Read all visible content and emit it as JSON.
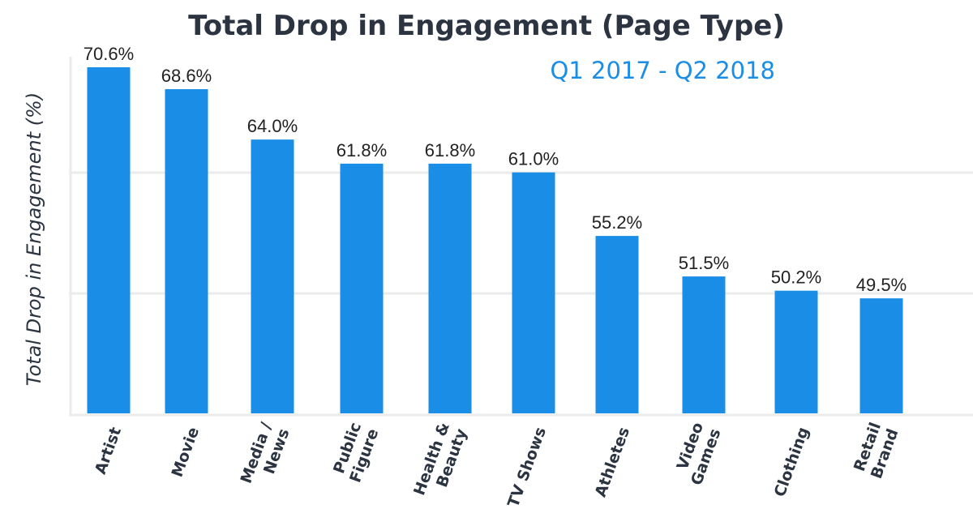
{
  "chart_data": {
    "type": "bar",
    "title": "Total Drop in Engagement (Page Type)",
    "subtitle": "Q1 2017 - Q2 2018",
    "ylabel": "Total Drop in Engagement (%)",
    "xlabel": "",
    "categories": [
      "Artist",
      "Movie",
      "Media / News",
      "Public Figure",
      "Health & Beauty",
      "TV Shows",
      "Athletes",
      "Video Games",
      "Clothing",
      "Retail Brand"
    ],
    "values": [
      70.6,
      68.6,
      64.0,
      61.8,
      61.8,
      61.0,
      55.2,
      51.5,
      50.2,
      49.5
    ],
    "data_labels": [
      "70.6%",
      "68.6%",
      "64.0%",
      "61.8%",
      "61.8%",
      "61.0%",
      "55.2%",
      "51.5%",
      "50.2%",
      "49.5%"
    ],
    "ylim": [
      39,
      71
    ],
    "grid": true,
    "legend": "none",
    "colors": {
      "bar": "#1a8de6",
      "title": "#2b3440",
      "subtitle": "#1a8de6",
      "grid": "#ebebeb"
    }
  }
}
